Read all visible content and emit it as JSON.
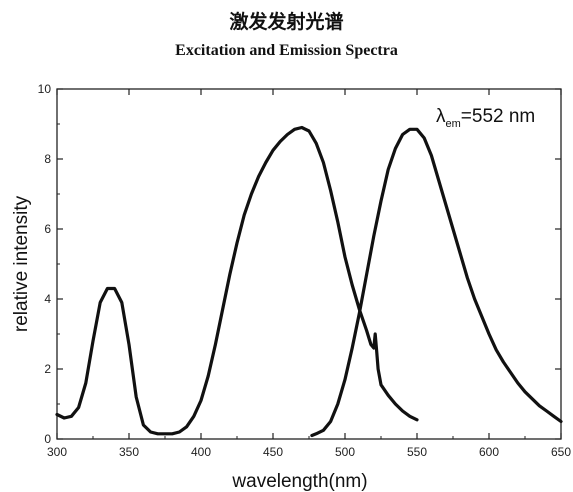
{
  "header": {
    "title_cn": "激发发射光谱",
    "title_en": "Excitation and Emission Spectra"
  },
  "chart_data": {
    "type": "line",
    "title": "激发发射光谱",
    "subtitle": "Excitation and Emission Spectra",
    "xlabel": "wavelength(nm)",
    "ylabel": "relative intensity",
    "xlim": [
      300,
      650
    ],
    "ylim": [
      0,
      10
    ],
    "xticks": [
      300,
      350,
      400,
      450,
      500,
      550,
      600,
      650
    ],
    "yticks": [
      0,
      2,
      4,
      6,
      8,
      10
    ],
    "xtick_labels": [
      "300",
      "350",
      "400",
      "450",
      "500",
      "550",
      "600",
      "650"
    ],
    "ytick_labels": [
      "0",
      "2",
      "4",
      "6",
      "8",
      "10"
    ],
    "grid": false,
    "annotation": {
      "symbol": "λ",
      "subscript": "em",
      "text": "=552 nm"
    },
    "line_color": "#111111",
    "series": [
      {
        "x": [
          300,
          305,
          310,
          315,
          320,
          325,
          330,
          335,
          340,
          345,
          350,
          355,
          360,
          365,
          370,
          375,
          380,
          385,
          390,
          395,
          400,
          405,
          410,
          415,
          420,
          425,
          430,
          435,
          440,
          445,
          450,
          455,
          460,
          465,
          470,
          475,
          480,
          485,
          490,
          495,
          500,
          505,
          510,
          515,
          518,
          520,
          521,
          522,
          523,
          525,
          530,
          535,
          540,
          545,
          550
        ],
        "y": [
          0.7,
          0.6,
          0.65,
          0.9,
          1.6,
          2.8,
          3.9,
          4.3,
          4.3,
          3.9,
          2.7,
          1.2,
          0.4,
          0.2,
          0.15,
          0.15,
          0.15,
          0.2,
          0.35,
          0.65,
          1.1,
          1.8,
          2.7,
          3.7,
          4.7,
          5.6,
          6.4,
          7.0,
          7.5,
          7.9,
          8.25,
          8.5,
          8.7,
          8.85,
          8.9,
          8.8,
          8.45,
          7.9,
          7.1,
          6.2,
          5.2,
          4.4,
          3.7,
          3.1,
          2.7,
          2.6,
          3.0,
          2.5,
          2.0,
          1.55,
          1.25,
          1.0,
          0.8,
          0.65,
          0.55
        ]
      },
      {
        "x": [
          477,
          480,
          485,
          490,
          495,
          500,
          505,
          510,
          515,
          520,
          525,
          530,
          535,
          540,
          545,
          550,
          555,
          560,
          565,
          570,
          575,
          580,
          585,
          590,
          595,
          600,
          605,
          610,
          615,
          620,
          625,
          630,
          635,
          640,
          645,
          650
        ],
        "y": [
          0.1,
          0.15,
          0.25,
          0.5,
          1.0,
          1.7,
          2.6,
          3.6,
          4.7,
          5.8,
          6.8,
          7.7,
          8.3,
          8.7,
          8.85,
          8.85,
          8.6,
          8.1,
          7.4,
          6.7,
          6.0,
          5.3,
          4.6,
          4.0,
          3.5,
          3.0,
          2.55,
          2.2,
          1.9,
          1.6,
          1.35,
          1.15,
          0.95,
          0.8,
          0.65,
          0.5
        ]
      }
    ]
  }
}
